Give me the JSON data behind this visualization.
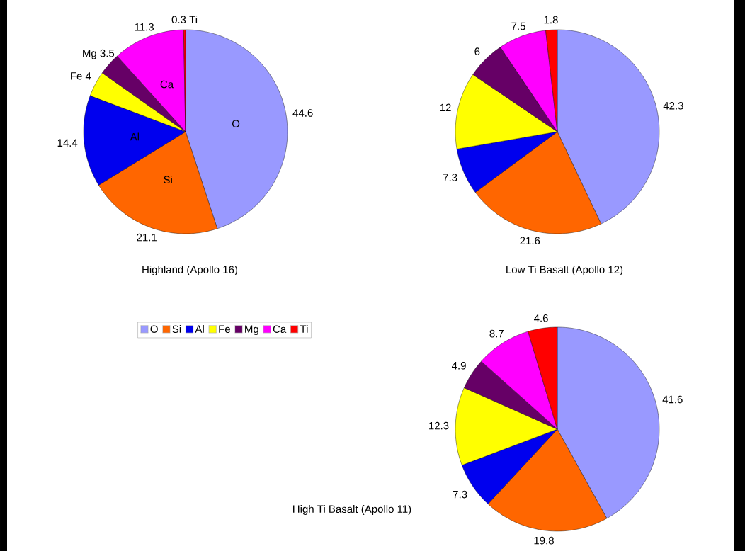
{
  "chart_data": [
    {
      "type": "pie",
      "title": "Highland (Apollo 16)",
      "categories": [
        "O",
        "Si",
        "Al",
        "Fe",
        "Mg",
        "Ca",
        "Ti"
      ],
      "values": [
        44.6,
        21.1,
        14.4,
        4,
        3.5,
        11.3,
        0.3
      ],
      "colors": [
        "#9999ff",
        "#ff6600",
        "#0000ee",
        "#ffff00",
        "#660066",
        "#ff00ff",
        "#ff0000"
      ],
      "data_labels": true,
      "legend": "bottom",
      "annotations": [
        {
          "text": "O",
          "x": "O"
        },
        {
          "text": "Si",
          "x": "Si"
        },
        {
          "text": "Al",
          "x": "Al"
        },
        {
          "text": "Fe",
          "x": "Fe"
        },
        {
          "text": "Mg",
          "x": "Mg"
        },
        {
          "text": "Ca",
          "x": "Ca"
        },
        {
          "text": "Ti",
          "x": "Ti"
        }
      ]
    },
    {
      "type": "pie",
      "title": "Low Ti Basalt (Apollo 12)",
      "categories": [
        null,
        null,
        null,
        null,
        null,
        null,
        null
      ],
      "values": [
        42.3,
        21.6,
        7.3,
        12,
        6,
        7.5,
        1.8
      ],
      "colors": [
        "#9999ff",
        "#ff6600",
        "#0000ee",
        "#ffff00",
        "#660066",
        "#ff00ff",
        "#ff0000"
      ],
      "data_labels": true
    },
    {
      "type": "pie",
      "title": "High Ti Basalt (Apollo 11)",
      "categories": [
        null,
        null,
        null,
        null,
        null,
        null,
        null
      ],
      "values": [
        41.6,
        19.8,
        7.3,
        12.3,
        4.9,
        8.7,
        4.6
      ],
      "colors": [
        "#9999ff",
        "#ff6600",
        "#0000ee",
        "#ffff00",
        "#660066",
        "#ff00ff",
        "#ff0000"
      ],
      "data_labels": true
    }
  ]
}
